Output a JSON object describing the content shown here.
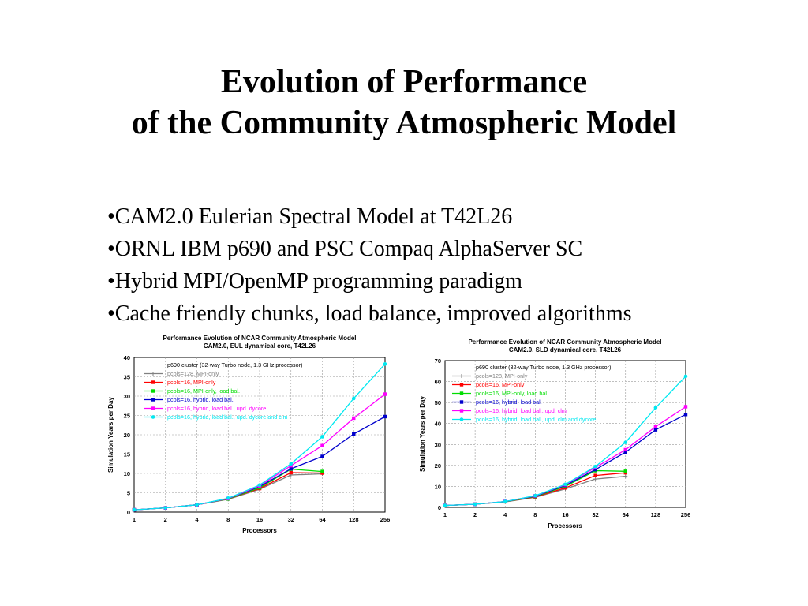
{
  "slide": {
    "title_line1": "Evolution of Performance",
    "title_line2": "of the Community Atmospheric Model",
    "bullets": [
      "•CAM2.0 Eulerian Spectral Model at T42L26",
      "•ORNL IBM p690 and PSC Compaq AlphaServer SC",
      "•Hybrid MPI/OpenMP programming paradigm",
      "•Cache friendly chunks, load balance, improved algorithms"
    ]
  },
  "colors": {
    "grey": "#808080",
    "red": "#ff0000",
    "green": "#00dd00",
    "blue": "#0000cc",
    "magenta": "#ff00ff",
    "cyan": "#00e8f0"
  },
  "chart_data": [
    {
      "type": "line",
      "title": "Performance Evolution of NCAR Community Atmospheric Model",
      "subtitle": "CAM2.0, EUL dynamical core, T42L26",
      "xlabel": "Processors",
      "ylabel": "Simulation Years per Day",
      "x_scale": "log2",
      "x": [
        1,
        2,
        4,
        8,
        16,
        32,
        64,
        128,
        256
      ],
      "ylim": [
        0,
        40
      ],
      "yticks": [
        0,
        5,
        10,
        15,
        20,
        25,
        30,
        35,
        40
      ],
      "grid": true,
      "legend_title": "p690 cluster (32-way Turbo node, 1.3 GHz processor)",
      "legend_position": "top-left",
      "series": [
        {
          "name": "pcols=128, MPI-only",
          "color": "#808080",
          "x": [
            1,
            2,
            4,
            8,
            16,
            32,
            64
          ],
          "y": [
            0.6,
            1.1,
            1.9,
            3.3,
            5.9,
            9.6,
            9.9
          ]
        },
        {
          "name": "pcols=16, MPI-only",
          "color": "#ff0000",
          "x": [
            1,
            2,
            4,
            8,
            16,
            32,
            64
          ],
          "y": [
            0.6,
            1.1,
            1.9,
            3.4,
            6.1,
            10.2,
            10.1
          ]
        },
        {
          "name": "pcols=16, MPI-only, load bal.",
          "color": "#00dd00",
          "x": [
            1,
            2,
            4,
            8,
            16,
            32,
            64
          ],
          "y": [
            0.6,
            1.1,
            1.9,
            3.4,
            6.3,
            11.1,
            10.5
          ]
        },
        {
          "name": "pcols=16, hybrid, load bal.",
          "color": "#0000cc",
          "x": [
            1,
            2,
            4,
            8,
            16,
            32,
            64,
            128,
            256
          ],
          "y": [
            0.6,
            1.1,
            1.9,
            3.5,
            6.6,
            11.2,
            14.4,
            20.2,
            24.7
          ]
        },
        {
          "name": "pcols=16, hybrid, load bal., upd. dycore",
          "color": "#ff00ff",
          "x": [
            1,
            2,
            4,
            8,
            16,
            32,
            64,
            128,
            256
          ],
          "y": [
            0.6,
            1.1,
            1.9,
            3.5,
            6.8,
            12.0,
            17.2,
            24.3,
            30.5
          ]
        },
        {
          "name": "pcols=16, hybrid, load bal., upd. dycore and clm",
          "color": "#00e8f0",
          "x": [
            1,
            2,
            4,
            8,
            16,
            32,
            64,
            128,
            256
          ],
          "y": [
            0.6,
            1.1,
            1.9,
            3.6,
            7.0,
            12.5,
            19.5,
            29.4,
            38.3
          ]
        }
      ]
    },
    {
      "type": "line",
      "title": "Performance Evolution of NCAR Community Atmospheric Model",
      "subtitle": "CAM2.0, SLD dynamical core, T42L26",
      "xlabel": "Processors",
      "ylabel": "Simulation Years per Day",
      "x_scale": "log2",
      "x": [
        1,
        2,
        4,
        8,
        16,
        32,
        64,
        128,
        256
      ],
      "ylim": [
        0,
        70
      ],
      "yticks": [
        0,
        10,
        20,
        30,
        40,
        50,
        60,
        70
      ],
      "grid": true,
      "legend_title": "p690 cluster (32-way Turbo node, 1.3 GHz processor)",
      "legend_position": "top-left",
      "series": [
        {
          "name": "pcols=128, MPI-only",
          "color": "#808080",
          "x": [
            1,
            2,
            4,
            8,
            16,
            32,
            64
          ],
          "y": [
            0.9,
            1.5,
            2.6,
            4.8,
            8.8,
            13.5,
            14.8
          ]
        },
        {
          "name": "pcols=16, MPI-only",
          "color": "#ff0000",
          "x": [
            1,
            2,
            4,
            8,
            16,
            32,
            64
          ],
          "y": [
            0.9,
            1.5,
            2.7,
            5.0,
            9.3,
            15.2,
            16.5
          ]
        },
        {
          "name": "pcols=16, MPI-only, load bal.",
          "color": "#00dd00",
          "x": [
            1,
            2,
            4,
            8,
            16,
            32,
            64
          ],
          "y": [
            0.9,
            1.5,
            2.7,
            5.2,
            10.0,
            17.5,
            17.2
          ]
        },
        {
          "name": "pcols=16, hybrid, load bal.",
          "color": "#0000cc",
          "x": [
            1,
            2,
            4,
            8,
            16,
            32,
            64,
            128,
            256
          ],
          "y": [
            0.9,
            1.5,
            2.8,
            5.4,
            10.5,
            18.0,
            26.3,
            37.0,
            44.3
          ]
        },
        {
          "name": "pcols=16, hybrid, load bal., upd. clm",
          "color": "#ff00ff",
          "x": [
            1,
            2,
            4,
            8,
            16,
            32,
            64,
            128,
            256
          ],
          "y": [
            0.9,
            1.5,
            2.8,
            5.5,
            10.8,
            19.0,
            27.5,
            38.5,
            48.0
          ]
        },
        {
          "name": "pcols=16, hybrid, load bal., upd. clm and dycore",
          "color": "#00e8f0",
          "x": [
            1,
            2,
            4,
            8,
            16,
            32,
            64,
            128,
            256
          ],
          "y": [
            0.9,
            1.5,
            2.8,
            5.6,
            11.0,
            19.5,
            31.0,
            47.5,
            62.5
          ]
        }
      ]
    }
  ]
}
